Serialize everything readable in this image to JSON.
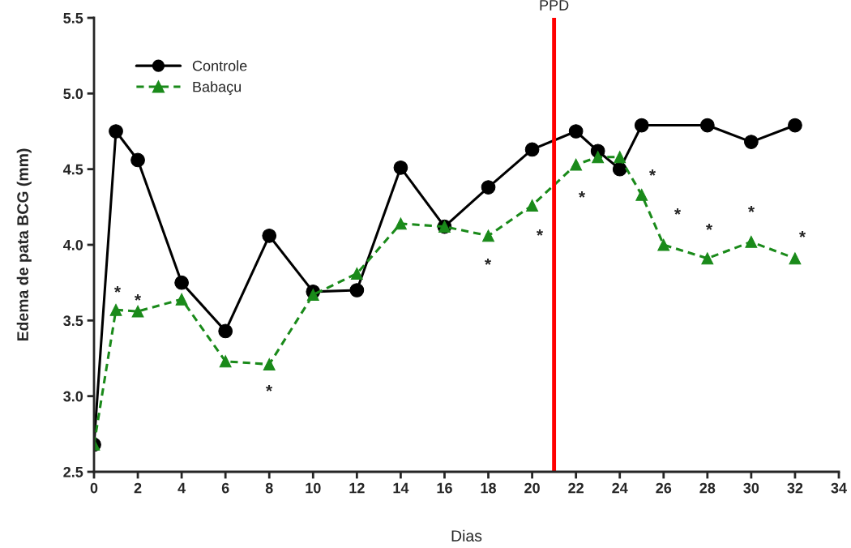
{
  "chart_data": {
    "type": "line",
    "xlabel": "Dias",
    "ylabel": "Edema de pata BCG (mm)",
    "xlim": [
      0,
      34
    ],
    "xticks": [
      0,
      2,
      4,
      6,
      8,
      10,
      12,
      14,
      16,
      18,
      20,
      22,
      24,
      26,
      28,
      30,
      32,
      34
    ],
    "ylim": [
      2.5,
      5.5
    ],
    "yticks": [
      {
        "value": 2.5,
        "label": "2.5"
      },
      {
        "value": 3,
        "label": "3.0"
      },
      {
        "value": 3.5,
        "label": "3.5"
      },
      {
        "value": 4,
        "label": "4.0"
      },
      {
        "value": 4.5,
        "label": "4.5"
      },
      {
        "value": 5,
        "label": "5.0"
      },
      {
        "value": 5.5,
        "label": "5.5"
      }
    ],
    "grid": false,
    "legend": "top left",
    "series": [
      {
        "name": "Controle",
        "color": "#000000",
        "marker": "circle",
        "line_style": "solid",
        "x": [
          0,
          1,
          2,
          4,
          6,
          8,
          10,
          12,
          14,
          16,
          18,
          20,
          22,
          23,
          24,
          25,
          28,
          30,
          32
        ],
        "values": [
          2.68,
          4.75,
          4.56,
          3.75,
          3.43,
          4.06,
          3.69,
          3.7,
          4.51,
          4.12,
          4.38,
          4.63,
          4.75,
          4.62,
          4.5,
          4.79,
          4.79,
          4.68,
          4.79
        ]
      },
      {
        "name": "Babaçu",
        "color": "#1a8a1a",
        "marker": "triangle",
        "line_style": "dashed",
        "x": [
          0,
          1,
          2,
          4,
          6,
          8,
          10,
          12,
          14,
          16,
          18,
          20,
          22,
          23,
          24,
          25,
          26,
          28,
          30,
          32
        ],
        "values": [
          2.68,
          3.57,
          3.56,
          3.64,
          3.23,
          3.21,
          3.67,
          3.81,
          4.14,
          4.12,
          4.06,
          4.26,
          4.53,
          4.58,
          4.58,
          4.33,
          4.0,
          3.91,
          4.02,
          3.91
        ]
      }
    ],
    "ref_lines": [
      {
        "axis": "x",
        "value": 21,
        "label": "PPD",
        "color": "#ff0000",
        "line_style": "solid"
      }
    ],
    "annotations": [
      "*",
      "*",
      "*",
      "*",
      "*",
      "*",
      "*",
      "*",
      "*",
      "*",
      "*"
    ]
  }
}
